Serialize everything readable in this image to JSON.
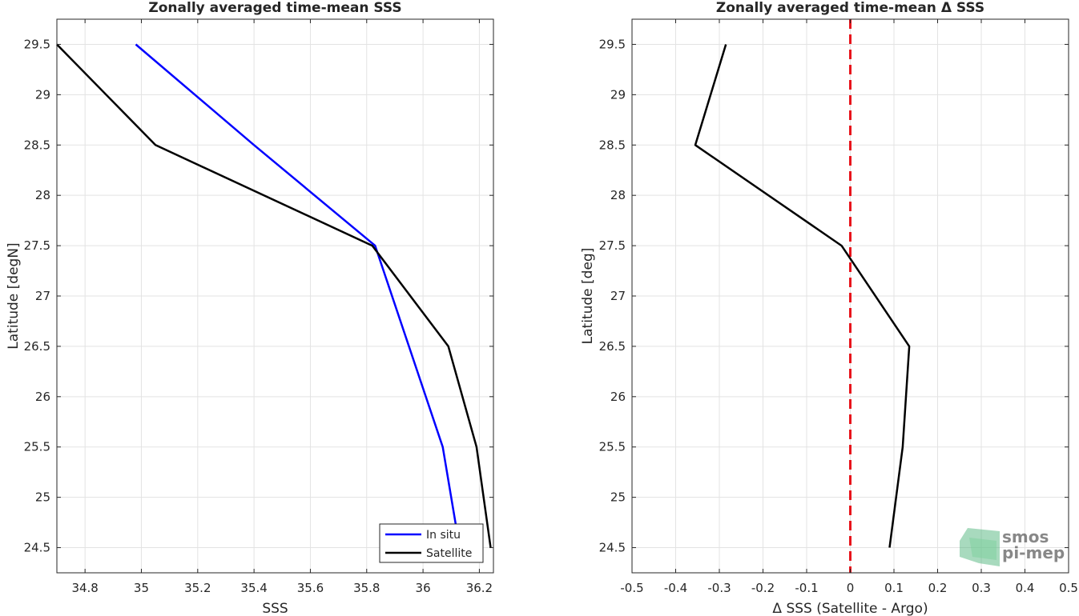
{
  "chart_data": [
    {
      "type": "line",
      "title": "Zonally averaged time-mean SSS",
      "xlabel": "SSS",
      "ylabel": "Latitude [degN]",
      "xlim": [
        34.7,
        36.25
      ],
      "ylim": [
        24.25,
        29.75
      ],
      "xticks": [
        34.8,
        35,
        35.2,
        35.4,
        35.6,
        35.8,
        36,
        36.2
      ],
      "xtick_labels": [
        "34.8",
        "35",
        "35.2",
        "35.4",
        "35.6",
        "35.8",
        "36",
        "36.2"
      ],
      "yticks": [
        24.5,
        25,
        25.5,
        26,
        26.5,
        27,
        27.5,
        28,
        28.5,
        29,
        29.5
      ],
      "ytick_labels": [
        "24.5",
        "25",
        "25.5",
        "26",
        "26.5",
        "27",
        "27.5",
        "28",
        "28.5",
        "29",
        "29.5"
      ],
      "grid": true,
      "legend": "bottom-right",
      "series": [
        {
          "name": "In situ",
          "color": "#0000ff",
          "x": [
            36.13,
            36.07,
            35.95,
            35.83,
            35.4,
            34.98
          ],
          "y": [
            24.5,
            25.5,
            26.5,
            27.5,
            28.5,
            29.5
          ]
        },
        {
          "name": "Satellite",
          "color": "#000000",
          "x": [
            36.24,
            36.19,
            36.09,
            35.82,
            35.05,
            34.7
          ],
          "y": [
            24.5,
            25.5,
            26.5,
            27.5,
            28.5,
            29.5
          ]
        }
      ]
    },
    {
      "type": "line",
      "title": "Zonally averaged time-mean Δ SSS",
      "xlabel": "Δ SSS (Satellite - Argo)",
      "ylabel": "Latitude [deg]",
      "xlim": [
        -0.5,
        0.5
      ],
      "ylim": [
        24.25,
        29.75
      ],
      "xticks": [
        -0.5,
        -0.4,
        -0.3,
        -0.2,
        -0.1,
        0,
        0.1,
        0.2,
        0.3,
        0.4,
        0.5
      ],
      "xtick_labels": [
        "-0.5",
        "-0.4",
        "-0.3",
        "-0.2",
        "-0.1",
        "0",
        "0.1",
        "0.2",
        "0.3",
        "0.4",
        "0.5"
      ],
      "yticks": [
        24.5,
        25,
        25.5,
        26,
        26.5,
        27,
        27.5,
        28,
        28.5,
        29,
        29.5
      ],
      "ytick_labels": [
        "24.5",
        "25",
        "25.5",
        "26",
        "26.5",
        "27",
        "27.5",
        "28",
        "28.5",
        "29",
        "29.5"
      ],
      "grid": true,
      "reference_line": {
        "x": 0,
        "color": "#e8141c",
        "style": "dashed"
      },
      "series": [
        {
          "color": "#000000",
          "x": [
            0.09,
            0.12,
            0.135,
            -0.02,
            -0.355,
            -0.285
          ],
          "y": [
            24.5,
            25.5,
            26.5,
            27.5,
            28.5,
            29.5
          ]
        }
      ]
    }
  ],
  "logo": {
    "line1": "smos",
    "line2": "pi-mep",
    "color": "#3fae6e"
  }
}
